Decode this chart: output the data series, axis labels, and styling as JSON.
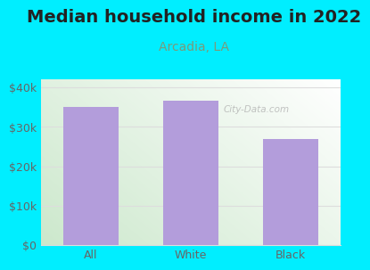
{
  "title": "Median household income in 2022",
  "subtitle": "Arcadia, LA",
  "categories": [
    "All",
    "White",
    "Black"
  ],
  "values": [
    35000,
    36500,
    27000
  ],
  "bar_color": "#b39ddb",
  "title_fontsize": 14,
  "title_fontweight": "bold",
  "title_color": "#222222",
  "subtitle_fontsize": 10,
  "subtitle_color": "#7a9a7a",
  "tick_label_fontsize": 9,
  "tick_color": "#666666",
  "background_outer": "#00eeff",
  "background_inner_topleft": "#e8f5e9",
  "background_inner_bottomleft": "#d4edda",
  "background_inner_topright": "#f8f8f8",
  "background_inner_bottomright": "#ffffff",
  "ylim": [
    0,
    42000
  ],
  "yticks": [
    0,
    10000,
    20000,
    30000,
    40000
  ],
  "ytick_labels": [
    "$0",
    "$10k",
    "$20k",
    "$30k",
    "$40k"
  ],
  "watermark": "City-Data.com",
  "watermark_color": "#aaaaaa",
  "grid_color": "#dddddd"
}
